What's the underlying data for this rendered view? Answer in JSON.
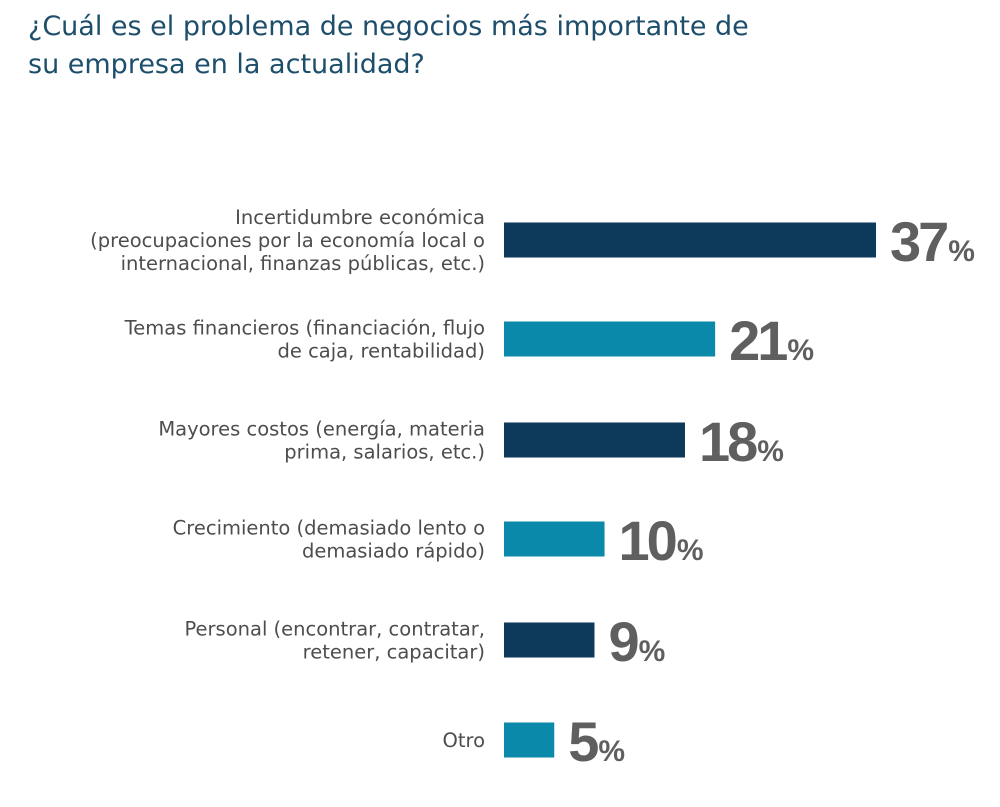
{
  "chart_data": {
    "type": "bar",
    "orientation": "horizontal",
    "title": "¿Cuál es el problema de negocios más importante de su empresa en la actualidad?",
    "categories": [
      [
        "Incertidumbre económica",
        "(preocupaciones por la economía local o",
        "internacional, finanzas públicas, etc.)"
      ],
      [
        "Temas financieros (financiación, flujo",
        "de caja, rentabilidad)"
      ],
      [
        "Mayores costos (energía, materia",
        "prima, salarios, etc.)"
      ],
      [
        "Crecimiento (demasiado lento o",
        "demasiado rápido)"
      ],
      [
        "Personal (encontrar, contratar,",
        "retener, capacitar)"
      ],
      [
        "Otro"
      ]
    ],
    "values": [
      37,
      21,
      18,
      10,
      9,
      5
    ],
    "value_suffix": "%",
    "bar_colors": [
      "#0d3a5a",
      "#0a89aa",
      "#0d3a5a",
      "#0a89aa",
      "#0d3a5a",
      "#0a89aa"
    ],
    "xlim": [
      0,
      37
    ],
    "xlabel": "",
    "ylabel": "",
    "grid": false
  }
}
